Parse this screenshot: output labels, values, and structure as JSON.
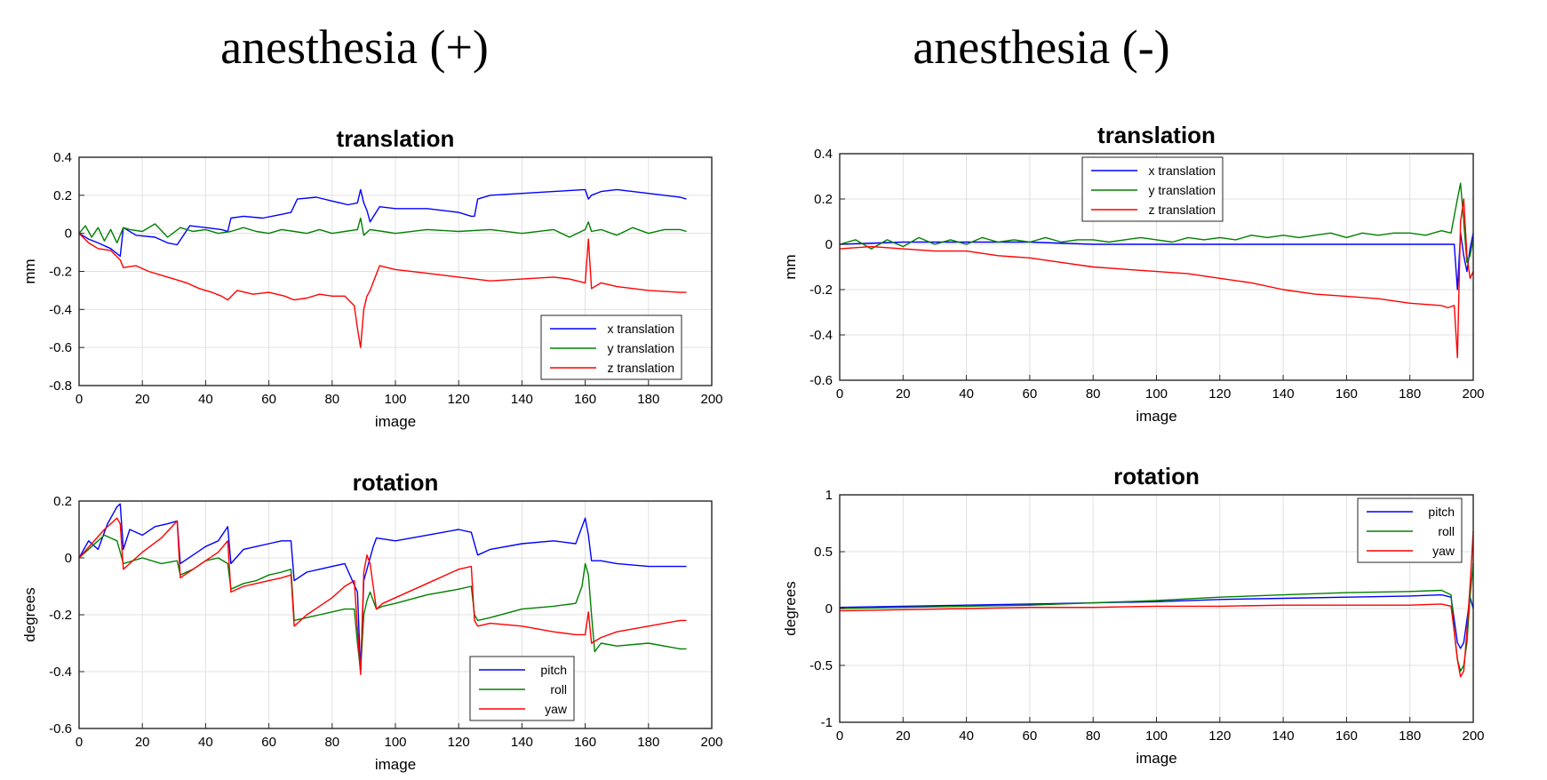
{
  "columns": [
    {
      "title": "anesthesia (+)"
    },
    {
      "title": "anesthesia (-)"
    }
  ],
  "chart_data": [
    {
      "type": "line",
      "title": "translation",
      "xlabel": "image",
      "ylabel": "mm",
      "xlim": [
        0,
        200
      ],
      "ylim": [
        -0.8,
        0.4
      ],
      "xticks": [
        0,
        20,
        40,
        60,
        80,
        100,
        120,
        140,
        160,
        180,
        200
      ],
      "yticks": [
        -0.8,
        -0.6,
        -0.4,
        -0.2,
        0,
        0.2,
        0.4
      ],
      "grid": true,
      "legend": "bottom-right",
      "series": [
        {
          "name": "x translation",
          "color": "#0000ff",
          "x": [
            0,
            3,
            6,
            10,
            13,
            14,
            18,
            24,
            28,
            31,
            35,
            40,
            45,
            47,
            48,
            52,
            58,
            64,
            67,
            69,
            75,
            80,
            85,
            88,
            89,
            90,
            91,
            92,
            95,
            100,
            110,
            120,
            124,
            125,
            126,
            130,
            140,
            150,
            160,
            161,
            162,
            165,
            170,
            180,
            190,
            192
          ],
          "y": [
            0,
            -0.03,
            -0.05,
            -0.08,
            -0.12,
            0.03,
            -0.01,
            -0.02,
            -0.05,
            -0.06,
            0.04,
            0.03,
            0.02,
            0.01,
            0.08,
            0.09,
            0.08,
            0.1,
            0.11,
            0.18,
            0.19,
            0.17,
            0.15,
            0.16,
            0.23,
            0.16,
            0.12,
            0.06,
            0.14,
            0.13,
            0.13,
            0.11,
            0.09,
            0.09,
            0.18,
            0.2,
            0.21,
            0.22,
            0.23,
            0.18,
            0.2,
            0.22,
            0.23,
            0.21,
            0.19,
            0.18
          ]
        },
        {
          "name": "y translation",
          "color": "#008000",
          "x": [
            0,
            2,
            4,
            6,
            8,
            10,
            12,
            14,
            16,
            20,
            24,
            28,
            32,
            36,
            40,
            44,
            48,
            52,
            56,
            60,
            64,
            68,
            72,
            76,
            80,
            84,
            88,
            89,
            90,
            92,
            96,
            100,
            110,
            120,
            130,
            140,
            150,
            155,
            160,
            161,
            162,
            165,
            170,
            175,
            180,
            185,
            190,
            192
          ],
          "y": [
            0,
            0.04,
            -0.02,
            0.03,
            -0.04,
            0.02,
            -0.05,
            0.03,
            0.02,
            0.01,
            0.05,
            -0.02,
            0.03,
            0.01,
            0.02,
            0,
            0.01,
            0.03,
            0.01,
            0,
            0.02,
            0.01,
            0,
            0.02,
            0,
            0.01,
            0.02,
            0.08,
            -0.01,
            0.02,
            0.01,
            0,
            0.02,
            0.01,
            0.02,
            0,
            0.02,
            -0.02,
            0.02,
            0.06,
            0.01,
            0.02,
            -0.01,
            0.03,
            0,
            0.02,
            0.02,
            0.01
          ]
        },
        {
          "name": "z translation",
          "color": "#ff0000",
          "x": [
            0,
            3,
            6,
            10,
            13,
            14,
            18,
            22,
            26,
            30,
            34,
            38,
            42,
            45,
            47,
            50,
            55,
            60,
            65,
            68,
            72,
            76,
            80,
            84,
            87,
            88,
            89,
            90,
            91,
            92,
            95,
            100,
            110,
            120,
            130,
            140,
            150,
            155,
            160,
            161,
            162,
            165,
            170,
            180,
            190,
            192
          ],
          "y": [
            0,
            -0.05,
            -0.08,
            -0.09,
            -0.14,
            -0.18,
            -0.17,
            -0.2,
            -0.22,
            -0.24,
            -0.26,
            -0.29,
            -0.31,
            -0.33,
            -0.35,
            -0.3,
            -0.32,
            -0.31,
            -0.33,
            -0.35,
            -0.34,
            -0.32,
            -0.33,
            -0.33,
            -0.38,
            -0.5,
            -0.6,
            -0.4,
            -0.33,
            -0.3,
            -0.17,
            -0.19,
            -0.21,
            -0.23,
            -0.25,
            -0.24,
            -0.23,
            -0.24,
            -0.26,
            -0.03,
            -0.29,
            -0.26,
            -0.28,
            -0.3,
            -0.31,
            -0.31
          ]
        }
      ]
    },
    {
      "type": "line",
      "title": "rotation",
      "xlabel": "image",
      "ylabel": "degrees",
      "xlim": [
        0,
        200
      ],
      "ylim": [
        -0.6,
        0.2
      ],
      "xticks": [
        0,
        20,
        40,
        60,
        80,
        100,
        120,
        140,
        160,
        180,
        200
      ],
      "yticks": [
        -0.6,
        -0.4,
        -0.2,
        0,
        0.2
      ],
      "grid": true,
      "legend": "bottom-right",
      "series": [
        {
          "name": "pitch",
          "color": "#0000ff",
          "x": [
            0,
            3,
            6,
            9,
            12,
            13,
            14,
            16,
            20,
            24,
            28,
            31,
            32,
            36,
            40,
            44,
            47,
            48,
            52,
            56,
            60,
            64,
            67,
            68,
            72,
            76,
            80,
            84,
            88,
            89,
            90,
            93,
            94,
            100,
            110,
            120,
            124,
            126,
            130,
            140,
            150,
            157,
            160,
            161,
            162,
            165,
            170,
            180,
            190,
            192
          ],
          "y": [
            0,
            0.06,
            0.03,
            0.12,
            0.18,
            0.19,
            0.03,
            0.1,
            0.08,
            0.11,
            0.12,
            0.13,
            -0.02,
            0.01,
            0.04,
            0.06,
            0.11,
            -0.02,
            0.03,
            0.04,
            0.05,
            0.06,
            0.06,
            -0.08,
            -0.05,
            -0.04,
            -0.03,
            -0.02,
            -0.12,
            -0.4,
            -0.08,
            0.04,
            0.07,
            0.06,
            0.08,
            0.1,
            0.09,
            0.01,
            0.03,
            0.05,
            0.06,
            0.05,
            0.14,
            0.08,
            -0.01,
            -0.01,
            -0.02,
            -0.03,
            -0.03,
            -0.03
          ]
        },
        {
          "name": "roll",
          "color": "#008000",
          "x": [
            0,
            4,
            8,
            12,
            13,
            14,
            20,
            26,
            31,
            32,
            36,
            40,
            44,
            47,
            48,
            52,
            56,
            60,
            64,
            67,
            68,
            72,
            76,
            80,
            84,
            87,
            88,
            89,
            90,
            91,
            92,
            94,
            96,
            100,
            110,
            120,
            124,
            125,
            126,
            130,
            140,
            150,
            157,
            159,
            160,
            161,
            162,
            163,
            165,
            170,
            180,
            190,
            192
          ],
          "y": [
            0,
            0.04,
            0.08,
            0.06,
            0.02,
            -0.02,
            0,
            -0.02,
            -0.01,
            -0.06,
            -0.04,
            -0.01,
            0,
            -0.02,
            -0.11,
            -0.09,
            -0.08,
            -0.06,
            -0.05,
            -0.04,
            -0.22,
            -0.21,
            -0.2,
            -0.19,
            -0.18,
            -0.18,
            -0.3,
            -0.4,
            -0.2,
            -0.15,
            -0.12,
            -0.18,
            -0.17,
            -0.16,
            -0.13,
            -0.11,
            -0.1,
            -0.2,
            -0.22,
            -0.21,
            -0.18,
            -0.17,
            -0.16,
            -0.1,
            -0.02,
            -0.06,
            -0.2,
            -0.33,
            -0.3,
            -0.31,
            -0.3,
            -0.32,
            -0.32
          ]
        },
        {
          "name": "yaw",
          "color": "#ff0000",
          "x": [
            0,
            4,
            8,
            12,
            13,
            14,
            20,
            26,
            31,
            32,
            36,
            40,
            44,
            47,
            48,
            52,
            56,
            60,
            64,
            67,
            68,
            72,
            76,
            80,
            84,
            87,
            88,
            89,
            90,
            91,
            92,
            94,
            96,
            100,
            110,
            120,
            124,
            125,
            126,
            130,
            140,
            150,
            157,
            160,
            161,
            162,
            165,
            170,
            180,
            190,
            192
          ],
          "y": [
            0,
            0.05,
            0.1,
            0.14,
            0.12,
            -0.04,
            0.02,
            0.07,
            0.13,
            -0.07,
            -0.04,
            -0.01,
            0.02,
            0.06,
            -0.12,
            -0.1,
            -0.09,
            -0.08,
            -0.07,
            -0.06,
            -0.24,
            -0.2,
            -0.17,
            -0.14,
            -0.1,
            -0.08,
            -0.25,
            -0.41,
            -0.05,
            0.01,
            -0.02,
            -0.18,
            -0.16,
            -0.14,
            -0.09,
            -0.04,
            -0.03,
            -0.22,
            -0.24,
            -0.23,
            -0.24,
            -0.26,
            -0.27,
            -0.27,
            -0.19,
            -0.3,
            -0.28,
            -0.26,
            -0.24,
            -0.22,
            -0.22
          ]
        }
      ]
    },
    {
      "type": "line",
      "title": "translation",
      "xlabel": "image",
      "ylabel": "mm",
      "xlim": [
        0,
        200
      ],
      "ylim": [
        -0.6,
        0.4
      ],
      "xticks": [
        0,
        20,
        40,
        60,
        80,
        100,
        120,
        140,
        160,
        180,
        200
      ],
      "yticks": [
        -0.6,
        -0.4,
        -0.2,
        0,
        0.2,
        0.4
      ],
      "grid": true,
      "legend": "top",
      "series": [
        {
          "name": "x translation",
          "color": "#0000ff",
          "x": [
            0,
            20,
            40,
            60,
            80,
            100,
            120,
            140,
            160,
            180,
            190,
            194,
            195,
            196,
            197,
            198,
            199,
            200
          ],
          "y": [
            0,
            0.01,
            0.01,
            0.01,
            0,
            0,
            0,
            0,
            0,
            0,
            0,
            0,
            -0.2,
            0.05,
            -0.05,
            -0.12,
            -0.02,
            0.05
          ]
        },
        {
          "name": "y translation",
          "color": "#008000",
          "x": [
            0,
            5,
            10,
            15,
            20,
            25,
            30,
            35,
            40,
            45,
            50,
            55,
            60,
            65,
            70,
            75,
            80,
            85,
            90,
            95,
            100,
            105,
            110,
            115,
            120,
            125,
            130,
            135,
            140,
            145,
            150,
            155,
            160,
            165,
            170,
            175,
            180,
            185,
            190,
            193,
            195,
            196,
            197,
            198,
            199,
            200
          ],
          "y": [
            0,
            0.02,
            -0.02,
            0.02,
            -0.01,
            0.03,
            0,
            0.02,
            0,
            0.03,
            0.01,
            0.02,
            0.01,
            0.03,
            0.01,
            0.02,
            0.02,
            0.01,
            0.02,
            0.03,
            0.02,
            0.01,
            0.03,
            0.02,
            0.03,
            0.02,
            0.04,
            0.03,
            0.04,
            0.03,
            0.04,
            0.05,
            0.03,
            0.05,
            0.04,
            0.05,
            0.05,
            0.04,
            0.06,
            0.05,
            0.2,
            0.27,
            0.1,
            -0.08,
            -0.05,
            0.02
          ]
        },
        {
          "name": "z translation",
          "color": "#ff0000",
          "x": [
            0,
            10,
            20,
            30,
            40,
            50,
            60,
            70,
            80,
            90,
            100,
            110,
            120,
            130,
            140,
            150,
            160,
            170,
            180,
            190,
            192,
            194,
            195,
            196,
            197,
            198,
            199,
            200
          ],
          "y": [
            -0.02,
            -0.01,
            -0.02,
            -0.03,
            -0.03,
            -0.05,
            -0.06,
            -0.08,
            -0.1,
            -0.11,
            -0.12,
            -0.13,
            -0.15,
            -0.17,
            -0.2,
            -0.22,
            -0.23,
            -0.24,
            -0.26,
            -0.27,
            -0.28,
            -0.27,
            -0.5,
            0.1,
            0.2,
            -0.05,
            -0.15,
            -0.12
          ]
        }
      ]
    },
    {
      "type": "line",
      "title": "rotation",
      "xlabel": "image",
      "ylabel": "degrees",
      "xlim": [
        0,
        200
      ],
      "ylim": [
        -1,
        1
      ],
      "xticks": [
        0,
        20,
        40,
        60,
        80,
        100,
        120,
        140,
        160,
        180,
        200
      ],
      "yticks": [
        -1,
        -0.5,
        0,
        0.5,
        1
      ],
      "grid": true,
      "legend": "top-right",
      "series": [
        {
          "name": "pitch",
          "color": "#0000ff",
          "x": [
            0,
            20,
            40,
            60,
            80,
            100,
            120,
            140,
            160,
            180,
            190,
            193,
            194,
            195,
            196,
            197,
            198,
            199,
            200
          ],
          "y": [
            0.01,
            0.02,
            0.03,
            0.04,
            0.05,
            0.06,
            0.08,
            0.09,
            0.1,
            0.11,
            0.12,
            0.1,
            -0.1,
            -0.3,
            -0.35,
            -0.3,
            -0.1,
            0.1,
            0
          ]
        },
        {
          "name": "roll",
          "color": "#008000",
          "x": [
            0,
            20,
            40,
            60,
            80,
            100,
            120,
            140,
            160,
            180,
            190,
            193,
            194,
            195,
            196,
            197,
            198,
            199,
            200
          ],
          "y": [
            0,
            0.01,
            0.02,
            0.03,
            0.05,
            0.07,
            0.1,
            0.12,
            0.14,
            0.15,
            0.16,
            0.12,
            -0.2,
            -0.45,
            -0.55,
            -0.5,
            -0.3,
            0.1,
            0.4
          ]
        },
        {
          "name": "yaw",
          "color": "#ff0000",
          "x": [
            0,
            20,
            40,
            60,
            80,
            100,
            120,
            140,
            160,
            180,
            190,
            193,
            194,
            195,
            196,
            197,
            198,
            199,
            200
          ],
          "y": [
            -0.02,
            -0.01,
            0,
            0.01,
            0.01,
            0.02,
            0.02,
            0.03,
            0.03,
            0.03,
            0.04,
            0.02,
            -0.2,
            -0.45,
            -0.6,
            -0.55,
            -0.2,
            0.2,
            0.68
          ]
        }
      ]
    }
  ]
}
